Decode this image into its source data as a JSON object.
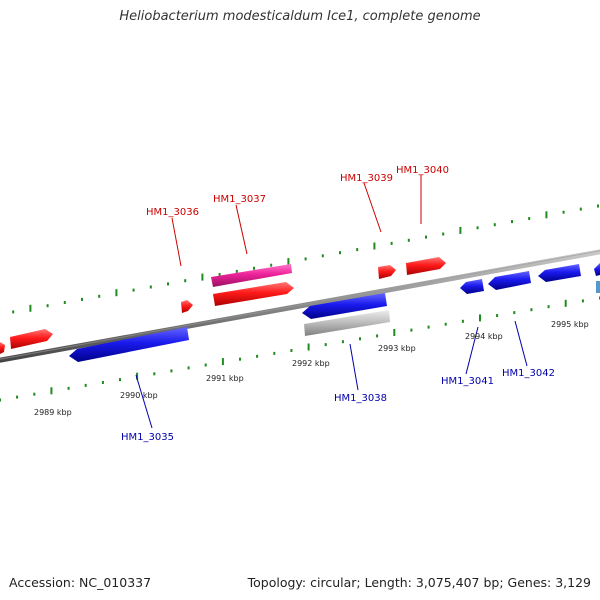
{
  "title": "Heliobacterium modesticaldum Ice1, complete genome",
  "footer": {
    "accession": "Accession: NC_010337",
    "summary": "Topology: circular; Length: 3,075,407 bp; Genes: 3,129"
  },
  "colors": {
    "forward_gene": "#ff1a1a",
    "forward_highlight": "#ee2299",
    "reverse_gene": "#1a1aee",
    "other_gene": "#b8b8b8",
    "backbone": "#888888",
    "tick": "#1e8c1e",
    "forward_label": "#cc0000",
    "reverse_label": "#0000aa"
  },
  "ticks": [
    "2989 kbp",
    "2990 kbp",
    "2991 kbp",
    "2992 kbp",
    "2993 kbp",
    "2994 kbp",
    "2995 kbp"
  ],
  "genes_forward": [
    "HM1_3036",
    "HM1_3037",
    "HM1_3039",
    "HM1_3040"
  ],
  "genes_reverse": [
    "HM1_3035",
    "HM1_3038",
    "HM1_3041",
    "HM1_3042"
  ]
}
